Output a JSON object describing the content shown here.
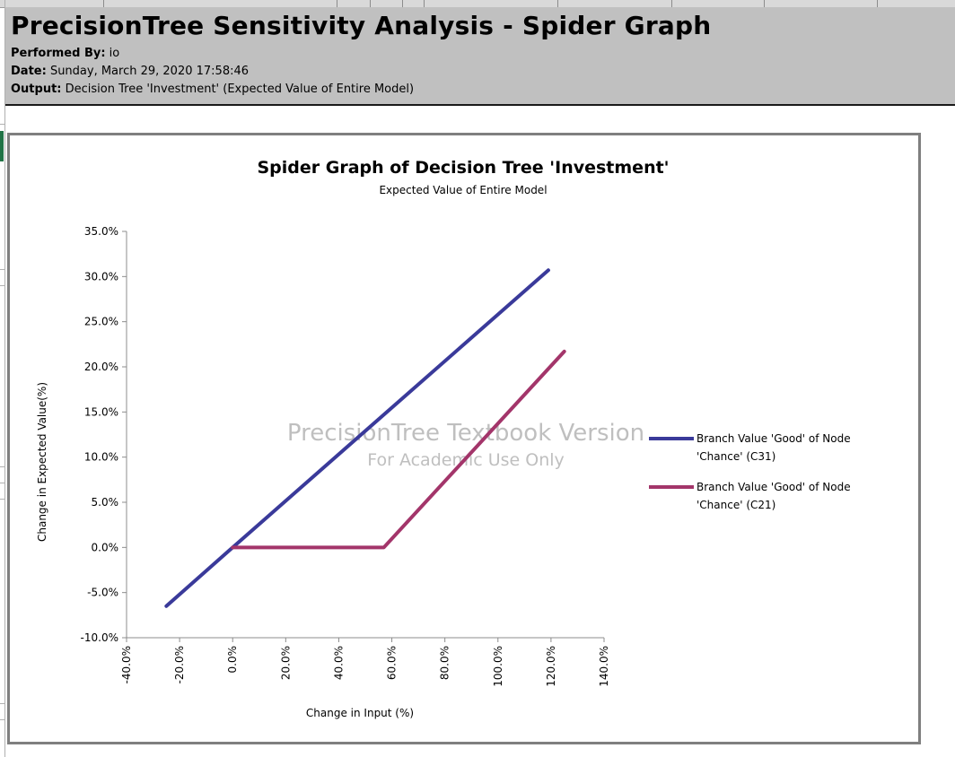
{
  "report": {
    "title": "PrecisionTree Sensitivity Analysis - Spider Graph",
    "performed_by_label": "Performed By:",
    "performed_by_value": "io",
    "date_label": "Date:",
    "date_value": "Sunday, March 29, 2020 17:58:46",
    "output_label": "Output:",
    "output_value": "Decision Tree 'Investment' (Expected Value of Entire Model)"
  },
  "watermark": {
    "line1": "PrecisionTree Textbook Version",
    "line2": "For Academic Use Only"
  },
  "chart_data": {
    "type": "line",
    "title": "Spider Graph of Decision Tree 'Investment'",
    "subtitle": "Expected Value of Entire Model",
    "xlabel": "Change in Input (%)",
    "ylabel": "Change in Expected Value(%)",
    "xlim": [
      -40,
      140
    ],
    "ylim": [
      -10,
      35
    ],
    "x_ticks": [
      "-40.0%",
      "-20.0%",
      "0.0%",
      "20.0%",
      "40.0%",
      "60.0%",
      "80.0%",
      "100.0%",
      "120.0%",
      "140.0%"
    ],
    "y_ticks": [
      "35.0%",
      "30.0%",
      "25.0%",
      "20.0%",
      "15.0%",
      "10.0%",
      "5.0%",
      "0.0%",
      "-5.0%",
      "-10.0%"
    ],
    "grid": false,
    "legend_position": "right",
    "series": [
      {
        "name": "Branch Value 'Good' of Node 'Chance' (C31)",
        "legend_lines": [
          "Branch Value 'Good' of Node",
          "'Chance' (C31)"
        ],
        "color": "#3a3a9a",
        "points": [
          [
            -25,
            -6.5
          ],
          [
            0,
            0
          ],
          [
            119,
            30.7
          ]
        ]
      },
      {
        "name": "Branch Value 'Good' of Node 'Chance' (C21)",
        "legend_lines": [
          "Branch Value 'Good' of Node",
          "'Chance' (C21)"
        ],
        "color": "#a3356a",
        "points": [
          [
            0,
            0
          ],
          [
            57,
            0
          ],
          [
            125,
            21.7
          ]
        ]
      }
    ]
  }
}
